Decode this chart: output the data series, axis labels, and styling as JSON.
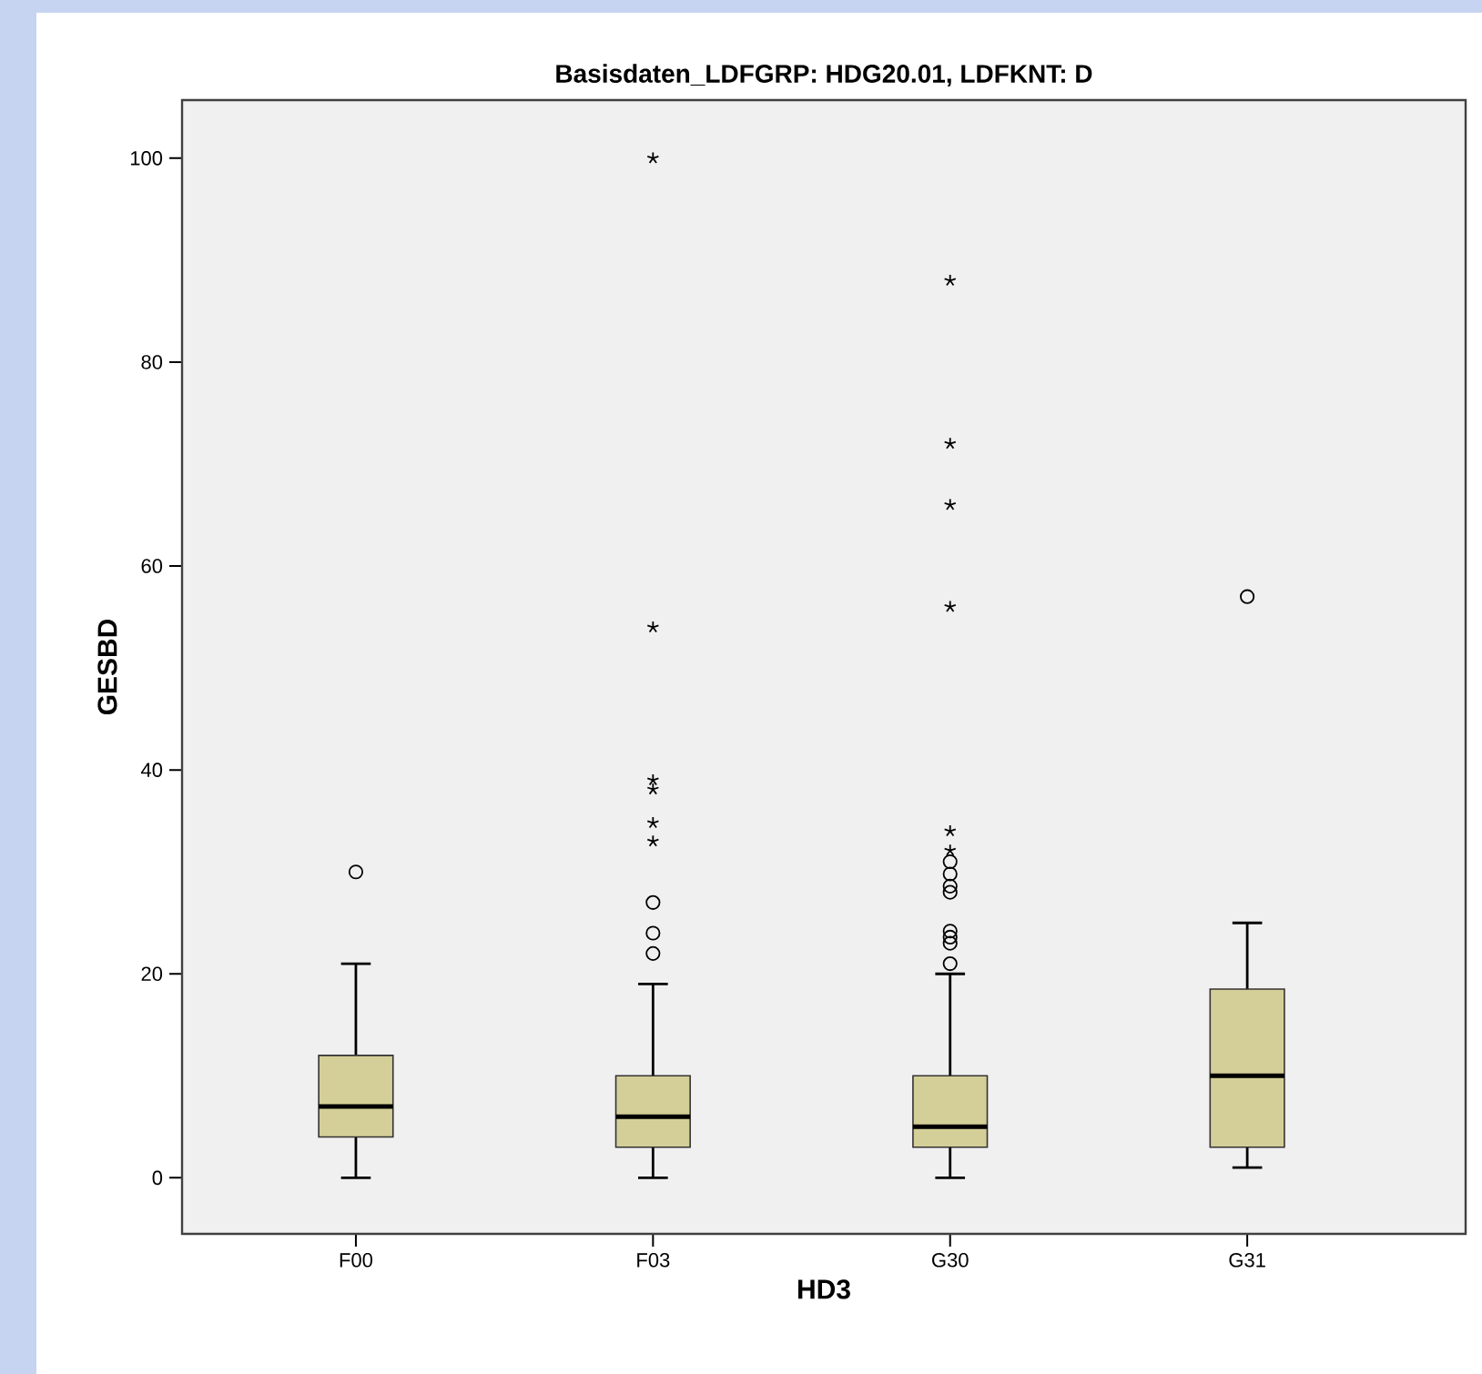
{
  "chart_data": {
    "type": "box",
    "title": "Basisdaten_LDFGRP: HDG20.01, LDFKNT: D",
    "xlabel": "HD3",
    "ylabel": "GESBD",
    "categories": [
      "F00",
      "F03",
      "G30",
      "G31"
    ],
    "boxes": [
      {
        "low": 0,
        "q1": 4,
        "median": 7,
        "q3": 12,
        "high": 21,
        "outliers": [
          30
        ]
      },
      {
        "low": 0,
        "q1": 3,
        "median": 6,
        "q3": 10,
        "high": 19,
        "outliers": [
          22,
          24,
          27,
          33,
          34.8,
          38.1,
          39,
          54,
          100
        ]
      },
      {
        "low": 0,
        "q1": 3,
        "median": 5,
        "q3": 10,
        "high": 20,
        "outliers": [
          21,
          23,
          23.6,
          24.2,
          28,
          28.6,
          29.8,
          31,
          32.1,
          34,
          56,
          66,
          72,
          88
        ]
      },
      {
        "low": 1,
        "q1": 3,
        "median": 10,
        "q3": 18.5,
        "high": 25,
        "outliers": [
          57
        ]
      }
    ],
    "color": "#d4cf98",
    "ylim": [
      -5.5,
      105.7
    ],
    "yticks": [
      0,
      20,
      40,
      60,
      80,
      100
    ]
  }
}
